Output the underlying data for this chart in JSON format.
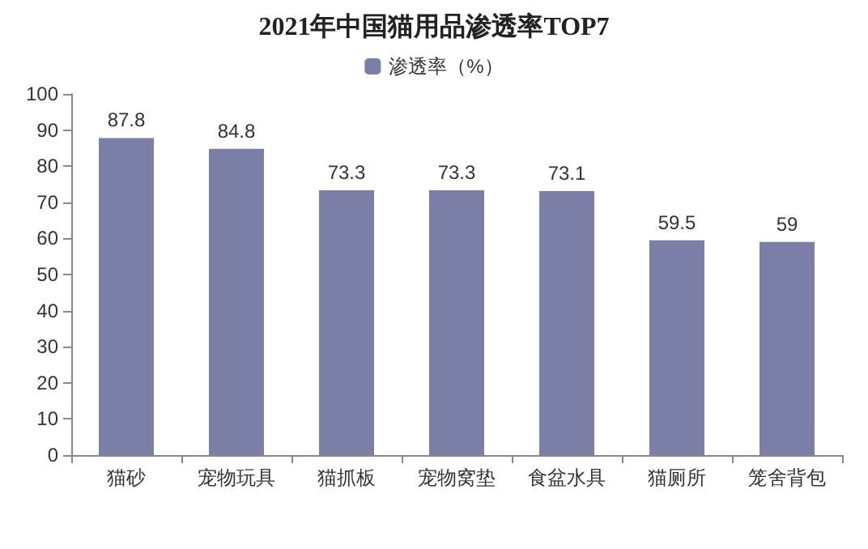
{
  "chart_data": {
    "type": "bar",
    "title": "2021年中国猫用品渗透率TOP7",
    "categories": [
      "猫砂",
      "宠物玩具",
      "猫抓板",
      "宠物窝垫",
      "食盆水具",
      "猫厕所",
      "笼舍背包"
    ],
    "series": [
      {
        "name": "渗透率（%）",
        "color": "#7b7fa8",
        "values": [
          87.8,
          84.8,
          73.3,
          73.3,
          73.1,
          59.5,
          59
        ]
      }
    ],
    "ylim": [
      0,
      100
    ],
    "yticks": [
      0,
      10,
      20,
      30,
      40,
      50,
      60,
      70,
      80,
      90,
      100
    ],
    "grid": false,
    "legend": "top",
    "data_labels": true
  }
}
